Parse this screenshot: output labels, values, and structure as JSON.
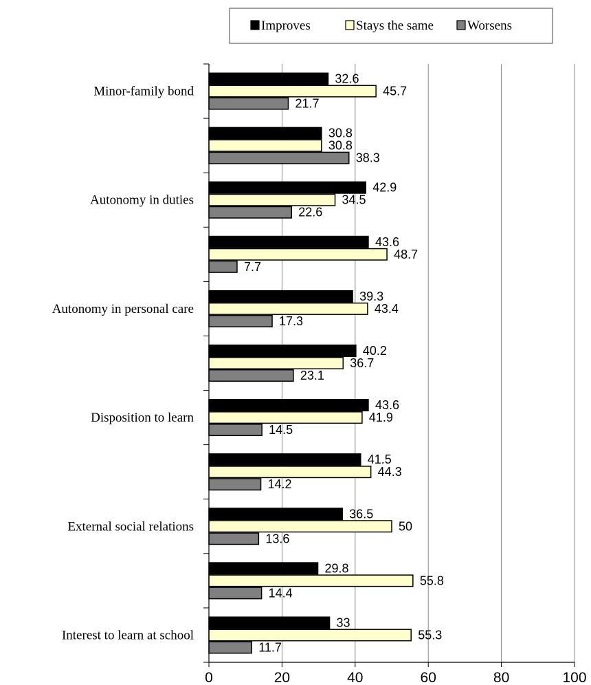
{
  "chart_data": {
    "type": "bar",
    "orientation": "horizontal",
    "title": "",
    "xlabel": "",
    "ylabel": "",
    "xlim": [
      0,
      100
    ],
    "x_ticks": [
      0,
      20,
      40,
      60,
      80,
      100
    ],
    "grid": "vertical",
    "legend_position": "top",
    "categories": [
      "Minor-family bond",
      "",
      "Autonomy in duties",
      "",
      "Autonomy in personal care",
      "",
      "Disposition to learn",
      "",
      "External social relations",
      "",
      "Interest to learn at school"
    ],
    "series": [
      {
        "name": "Improves",
        "color": "#000000",
        "values": [
          32.6,
          30.8,
          42.9,
          43.6,
          39.3,
          40.2,
          43.6,
          41.5,
          36.5,
          29.8,
          33
        ]
      },
      {
        "name": "Stays the same",
        "color": "#FFFFCC",
        "values": [
          45.7,
          30.8,
          34.5,
          48.7,
          43.4,
          36.7,
          41.9,
          44.3,
          50,
          55.8,
          55.3
        ]
      },
      {
        "name": "Worsens",
        "color": "#808080",
        "values": [
          21.7,
          38.3,
          22.6,
          7.7,
          17.3,
          23.1,
          14.5,
          14.2,
          13.6,
          14.4,
          11.7
        ]
      }
    ]
  }
}
